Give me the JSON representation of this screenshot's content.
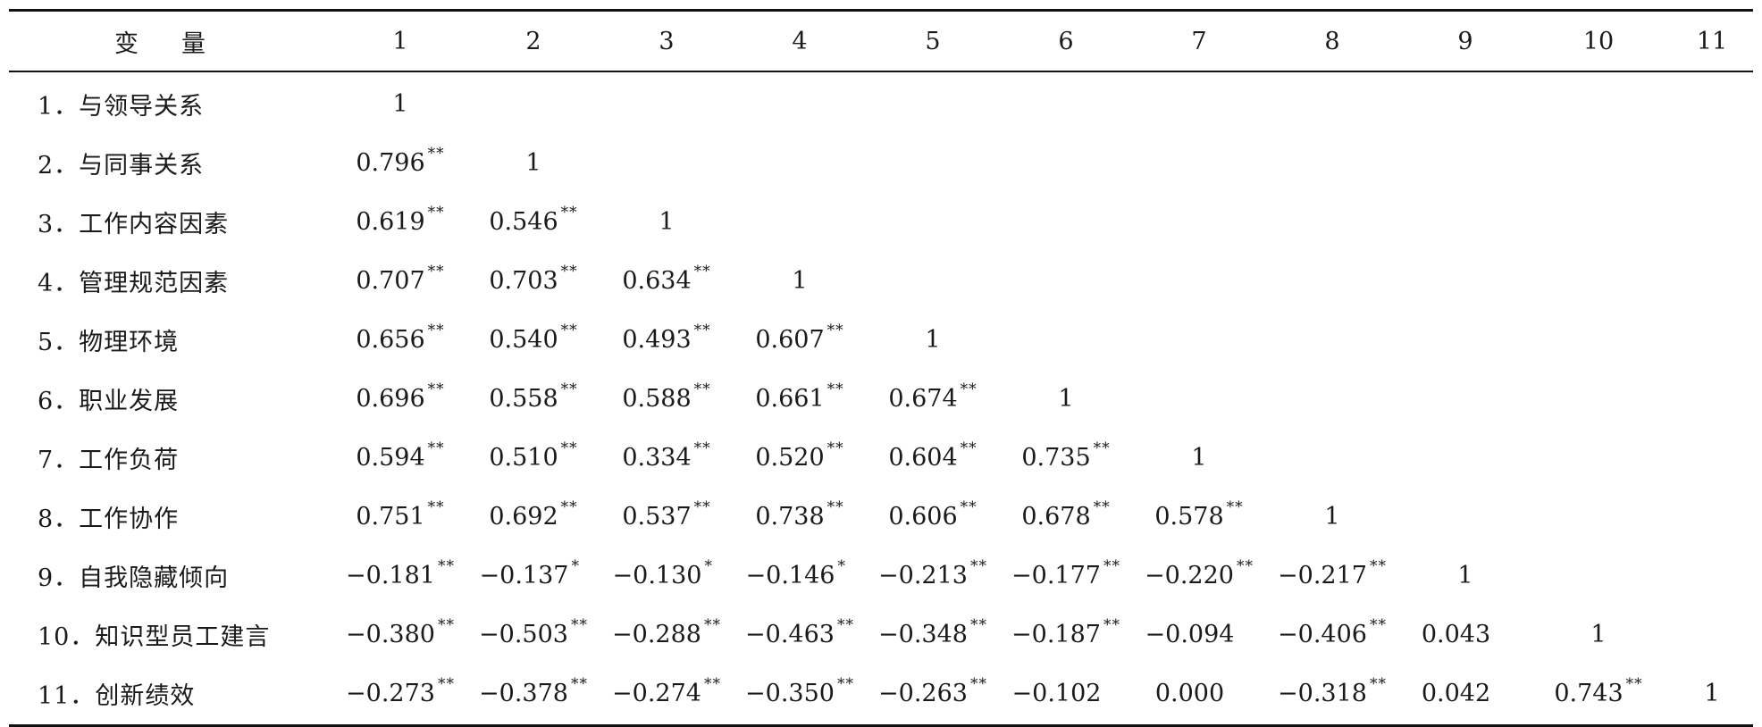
{
  "header": {
    "var_label": "变量",
    "cols": [
      "1",
      "2",
      "3",
      "4",
      "5",
      "6",
      "7",
      "8",
      "9",
      "10",
      "11"
    ]
  },
  "rows": [
    {
      "label": "1．与领导关系",
      "cells": [
        [
          "1",
          ""
        ]
      ]
    },
    {
      "label": "2．与同事关系",
      "cells": [
        [
          "0.796",
          "**"
        ],
        [
          "1",
          ""
        ]
      ]
    },
    {
      "label": "3．工作内容因素",
      "cells": [
        [
          "0.619",
          "**"
        ],
        [
          "0.546",
          "**"
        ],
        [
          "1",
          ""
        ]
      ]
    },
    {
      "label": "4．管理规范因素",
      "cells": [
        [
          "0.707",
          "**"
        ],
        [
          "0.703",
          "**"
        ],
        [
          "0.634",
          "**"
        ],
        [
          "1",
          ""
        ]
      ]
    },
    {
      "label": "5．物理环境",
      "cells": [
        [
          "0.656",
          "**"
        ],
        [
          "0.540",
          "**"
        ],
        [
          "0.493",
          "**"
        ],
        [
          "0.607",
          "**"
        ],
        [
          "1",
          ""
        ]
      ]
    },
    {
      "label": "6．职业发展",
      "cells": [
        [
          "0.696",
          "**"
        ],
        [
          "0.558",
          "**"
        ],
        [
          "0.588",
          "**"
        ],
        [
          "0.661",
          "**"
        ],
        [
          "0.674",
          "**"
        ],
        [
          "1",
          ""
        ]
      ]
    },
    {
      "label": "7．工作负荷",
      "cells": [
        [
          "0.594",
          "**"
        ],
        [
          "0.510",
          "**"
        ],
        [
          "0.334",
          "**"
        ],
        [
          "0.520",
          "**"
        ],
        [
          "0.604",
          "**"
        ],
        [
          "0.735",
          "**"
        ],
        [
          "1",
          ""
        ]
      ]
    },
    {
      "label": "8．工作协作",
      "cells": [
        [
          "0.751",
          "**"
        ],
        [
          "0.692",
          "**"
        ],
        [
          "0.537",
          "**"
        ],
        [
          "0.738",
          "**"
        ],
        [
          "0.606",
          "**"
        ],
        [
          "0.678",
          "**"
        ],
        [
          "0.578",
          "**"
        ],
        [
          "1",
          ""
        ]
      ]
    },
    {
      "label": "9．自我隐藏倾向",
      "cells": [
        [
          "−0.181",
          "**"
        ],
        [
          "−0.137",
          "*"
        ],
        [
          "−0.130",
          "*"
        ],
        [
          "−0.146",
          "*"
        ],
        [
          "−0.213",
          "**"
        ],
        [
          "−0.177",
          "**"
        ],
        [
          "−0.220",
          "**"
        ],
        [
          "−0.217",
          "**"
        ],
        [
          "1",
          ""
        ]
      ]
    },
    {
      "label": "10．知识型员工建言",
      "cells": [
        [
          "−0.380",
          "**"
        ],
        [
          "−0.503",
          "**"
        ],
        [
          "−0.288",
          "**"
        ],
        [
          "−0.463",
          "**"
        ],
        [
          "−0.348",
          "**"
        ],
        [
          "−0.187",
          "**"
        ],
        [
          "−0.094",
          ""
        ],
        [
          "−0.406",
          "**"
        ],
        [
          "0.043",
          ""
        ],
        [
          "1",
          ""
        ]
      ]
    },
    {
      "label": "11．创新绩效",
      "cells": [
        [
          "−0.273",
          "**"
        ],
        [
          "−0.378",
          "**"
        ],
        [
          "−0.274",
          "**"
        ],
        [
          "−0.350",
          "**"
        ],
        [
          "−0.263",
          "**"
        ],
        [
          "−0.102",
          ""
        ],
        [
          "0.000",
          ""
        ],
        [
          "−0.318",
          "**"
        ],
        [
          "0.042",
          ""
        ],
        [
          "0.743",
          "**"
        ],
        [
          "1",
          ""
        ]
      ]
    }
  ]
}
